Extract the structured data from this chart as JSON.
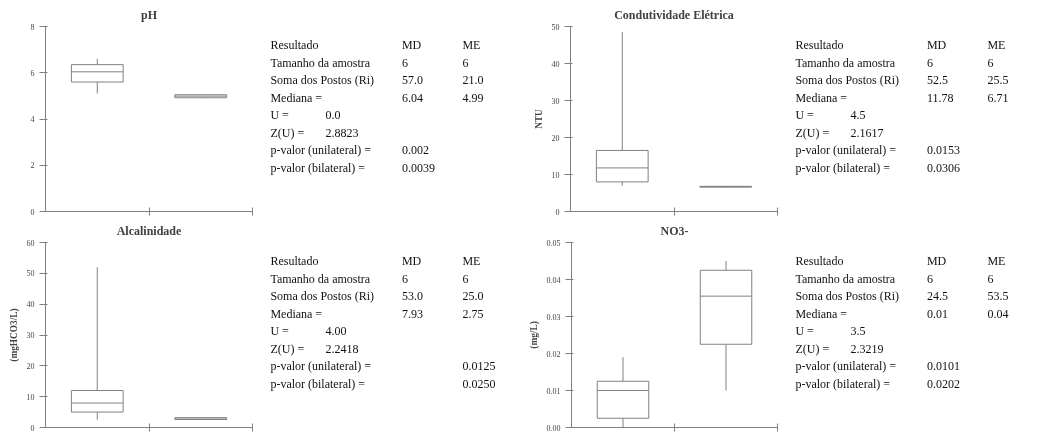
{
  "chart_data": [
    {
      "type": "box",
      "title": "pH",
      "categories": [
        null,
        null
      ],
      "tick_labels": "y",
      "ylim": [
        0,
        8
      ],
      "yticks": [
        0,
        2,
        4,
        6,
        8
      ],
      "series": [
        {
          "color": "#808080",
          "boxes": [
            {
              "low": 5.1,
              "q1": 5.6,
              "median": 6.04,
              "q3": 6.35,
              "high": 6.6
            },
            {
              "low": 4.9,
              "q1": 4.92,
              "median": 4.99,
              "q3": 5.05,
              "high": 5.05
            }
          ]
        }
      ]
    },
    {
      "type": "other",
      "annotations": [
        "Resultado\t\tMD\tME",
        "Tamanho da amostra\t\t6\t6",
        "Soma dos Postos (Ri)\t\t57.0\t21.0",
        "Mediana =\t\t6.04\t4.99",
        "U =\t0.0",
        "Z(U) =\t2.8823",
        "p-valor (unilateral) =\t\t0.002",
        "p-valor (bilateral) =\t\t0.0039"
      ]
    },
    {
      "type": "box",
      "title": "Condutividade Elétrica",
      "ylabel": "NTU",
      "categories": [
        null,
        null
      ],
      "tick_labels": "y",
      "ylim": [
        0,
        50
      ],
      "yticks": [
        0,
        10,
        20,
        30,
        40,
        50
      ],
      "series": [
        {
          "color": "#808080",
          "boxes": [
            {
              "low": 7,
              "q1": 8,
              "median": 11.78,
              "q3": 16.5,
              "high": 48.5
            },
            {
              "low": 6.5,
              "q1": 6.6,
              "median": 6.71,
              "q3": 6.8,
              "high": 6.9
            }
          ]
        }
      ]
    },
    {
      "type": "other",
      "annotations": [
        "Resultado\t\tMD\tME",
        "Tamanho da amostra\t\t6\t6",
        "Soma dos Postos (Ri)\t\t52.5\t25.5",
        "Mediana =\t\t11.78\t6.71",
        "U =\t4.5",
        "Z(U) =\t2.1617",
        "p-valor (unilateral) =\t\t0.0153",
        "p-valor (bilateral) =\t\t0.0306"
      ]
    },
    {
      "type": "box",
      "title": "Alcalinidade",
      "ylabel": "(mgHCO3/L)",
      "categories": [
        null,
        null
      ],
      "tick_labels": "y",
      "ylim": [
        0,
        60
      ],
      "yticks": [
        0,
        10,
        20,
        30,
        40,
        50,
        60
      ],
      "series": [
        {
          "color": "#808080",
          "boxes": [
            {
              "low": 2.5,
              "q1": 5,
              "median": 7.93,
              "q3": 12,
              "high": 52
            },
            {
              "low": 2.5,
              "q1": 2.6,
              "median": 2.75,
              "q3": 3.2,
              "high": 3.3
            }
          ]
        }
      ]
    },
    {
      "type": "other",
      "annotations": [
        "Resultado\t\tMD\tME",
        "Tamanho da amostra\t\t6\t6",
        "Soma dos Postos (Ri)\t\t53.0\t25.0",
        "Mediana =\t\t7.93\t2.75",
        "U =\t4.00",
        "Z(U) =\t2.2418",
        "p-valor (unilateral) =\t\t\t0.0125",
        "p-valor (bilateral) =\t\t\t0.0250"
      ]
    },
    {
      "type": "box",
      "title": "NO3-",
      "ylabel": "(mg/L)",
      "categories": [
        null,
        null
      ],
      "tick_labels": "y",
      "ylim": [
        0,
        0.05
      ],
      "yticks": [
        {
          "value": 0,
          "label": "0.00"
        },
        {
          "value": 0.01,
          "label": "0.01"
        },
        {
          "value": 0.02,
          "label": "0.02"
        },
        {
          "value": 0.03,
          "label": "0.03"
        },
        {
          "value": 0.04,
          "label": "0.04"
        },
        {
          "value": 0.05,
          "label": "0.05"
        }
      ],
      "series": [
        {
          "color": "#808080",
          "boxes": [
            {
              "low": 0.0,
              "q1": 0.0025,
              "median": 0.01,
              "q3": 0.0125,
              "high": 0.019
            },
            {
              "low": 0.01,
              "q1": 0.0225,
              "median": 0.0355,
              "q3": 0.0425,
              "high": 0.045
            }
          ]
        }
      ]
    },
    {
      "type": "other",
      "annotations": [
        "Resultado\t\tMD\tME",
        "Tamanho da amostra\t\t6\t6",
        "Soma dos Postos (Ri)\t\t24.5\t53.5",
        "Mediana =\t\t0.01\t0.04",
        "U =\t3.5",
        "Z(U) =\t2.3219",
        "p-valor (unilateral) =\t\t0.0101",
        "p-valor (bilateral) =\t\t0.0202"
      ]
    }
  ]
}
